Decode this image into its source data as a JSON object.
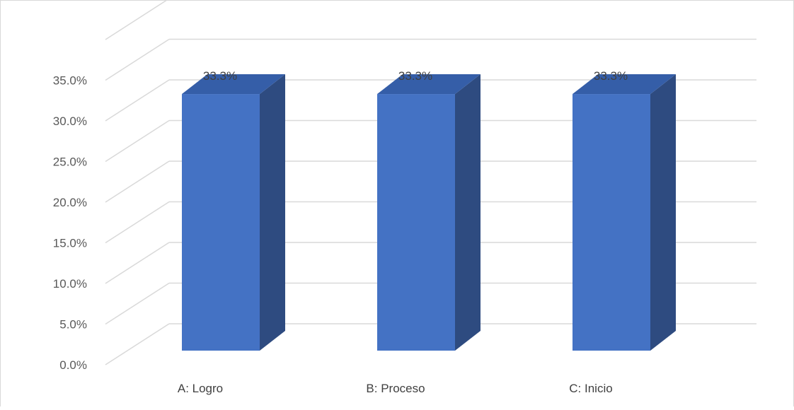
{
  "chart_data": {
    "type": "bar",
    "categories": [
      "A: Logro",
      "B: Proceso",
      "C: Inicio"
    ],
    "values": [
      33.3,
      33.3,
      33.3
    ],
    "data_labels": [
      "33.3%",
      "33.3%",
      "33.3%"
    ],
    "title": "",
    "xlabel": "",
    "ylabel": "",
    "ylim": [
      0,
      35
    ],
    "y_ticks": [
      0,
      5,
      10,
      15,
      20,
      25,
      30,
      35
    ],
    "y_tick_labels": [
      "0.0%",
      "5.0%",
      "10.0%",
      "15.0%",
      "20.0%",
      "25.0%",
      "30.0%",
      "35.0%"
    ],
    "grid": true,
    "legend": "none",
    "style": "3d-column",
    "colors": {
      "bar_front": "#4472c4",
      "bar_side": "#2e4b80",
      "bar_top": "#355ea8",
      "grid": "#d9d9d9"
    }
  }
}
